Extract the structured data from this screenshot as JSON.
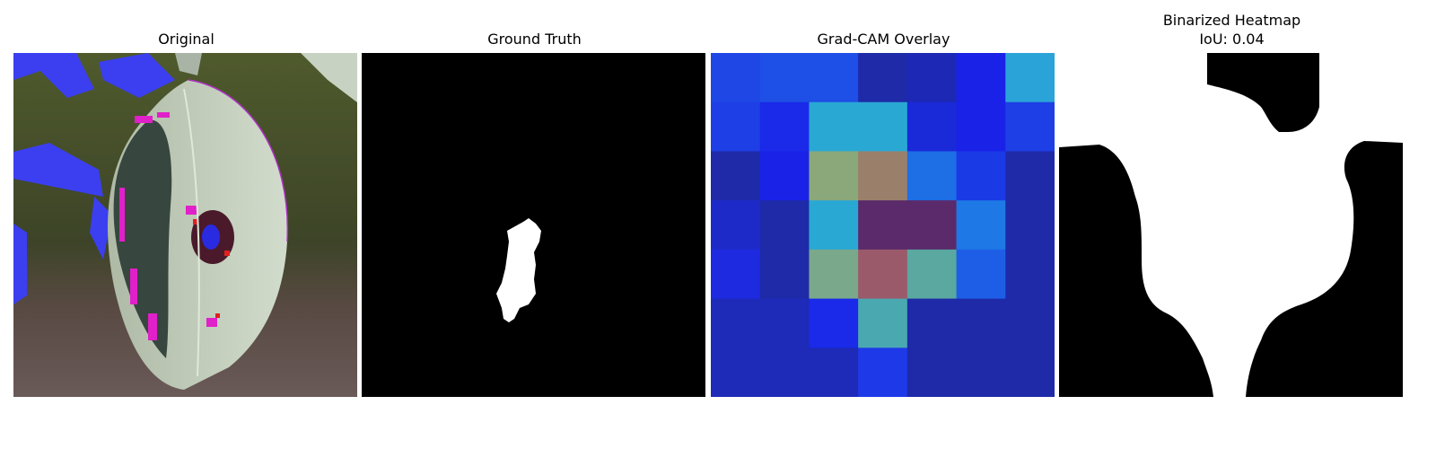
{
  "panels": [
    {
      "title": "Original"
    },
    {
      "title": "Ground Truth"
    },
    {
      "title": "Grad-CAM Overlay"
    },
    {
      "title": "Binarized Heatmap",
      "subtitle": "IoU: 0.04"
    }
  ],
  "gradcam_grid": [
    [
      "#1e47e6",
      "#1e4fe6",
      "#1e4fe6",
      "#1e2aa8",
      "#1d28b4",
      "#1a22e8",
      "#2aa4d8"
    ],
    [
      "#1e3fe6",
      "#1a2ae8",
      "#2aa8d4",
      "#2aa8d4",
      "#1a2ad8",
      "#1a22e8",
      "#1e3fe6"
    ],
    [
      "#1e2aa8",
      "#1a22e8",
      "#8aa87a",
      "#9a806a",
      "#1e6ee6",
      "#1a3ae6",
      "#1e2aa8"
    ],
    [
      "#1e2ac8",
      "#1e2aa8",
      "#2aa8d4",
      "#5a2a6a",
      "#5a2a6a",
      "#1e78e6",
      "#1e2aa8"
    ],
    [
      "#1e2ae0",
      "#1e2aa8",
      "#7aa88a",
      "#9a5a6a",
      "#5aa8a0",
      "#1e5ee6",
      "#1e2aa8"
    ],
    [
      "#1e2ab8",
      "#1e2ab8",
      "#1a2ae8",
      "#4aa8b0",
      "#1e2aa8",
      "#1e2aa8",
      "#1e2aa8"
    ],
    [
      "#1e2ab8",
      "#1e2ab8",
      "#1e2ab8",
      "#1e3ae8",
      "#1e2aa8",
      "#1e2aa8",
      "#1e2aa8"
    ]
  ],
  "colors": {
    "background": "#ffffff",
    "mask": "#ffffff",
    "mask_bg": "#000000"
  }
}
